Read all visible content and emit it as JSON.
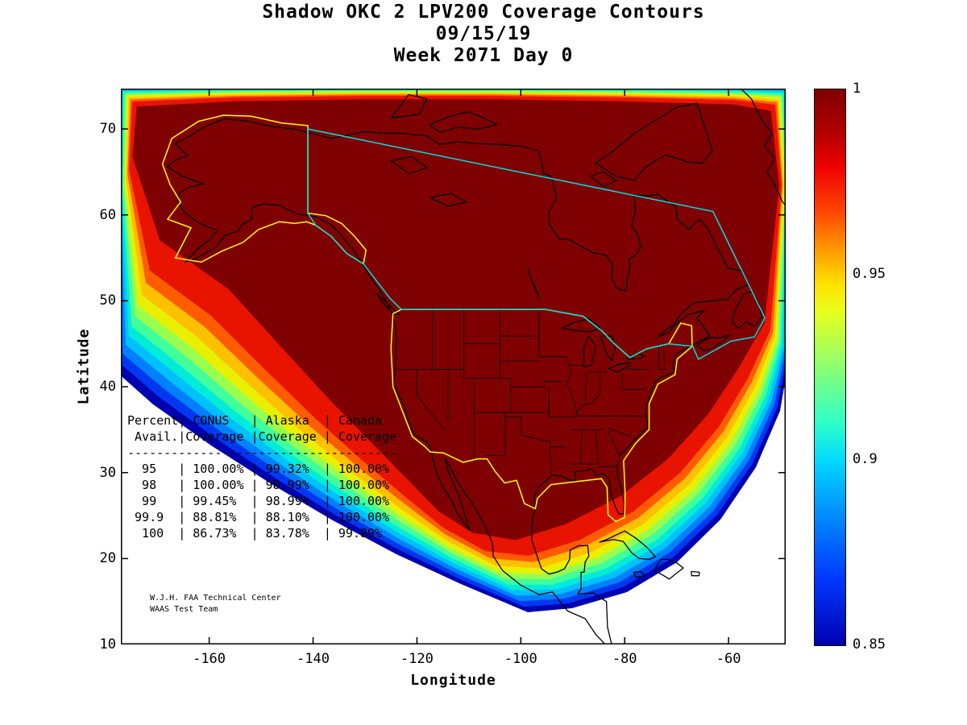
{
  "title": {
    "line1": "Shadow OKC 2 LPV200 Coverage Contours",
    "line2": "09/15/19",
    "line3": "Week 2071 Day 0"
  },
  "axes": {
    "xlabel": "Longitude",
    "ylabel": "Latitude"
  },
  "credit": {
    "line1": "W.J.H. FAA Technical Center",
    "line2": "WAAS Test Team"
  },
  "table": {
    "header_line1": "Percent| CONUS   | Alaska  | Canada",
    "header_line2": " Avail.|Coverage |Coverage | Coverage",
    "rows": [
      [
        "95",
        "100.00%",
        "99.32%",
        "100.00%"
      ],
      [
        "98",
        "100.00%",
        "98.99%",
        "100.00%"
      ],
      [
        "99",
        "99.45%",
        "98.99%",
        "100.00%"
      ],
      [
        "99.9",
        "88.81%",
        "88.10%",
        "100.00%"
      ],
      [
        "100",
        "86.73%",
        "83.78%",
        "99.89%"
      ]
    ]
  },
  "chart_data": {
    "type": "heatmap",
    "title": "Shadow OKC 2 LPV200 Coverage Contours",
    "subtitle": [
      "09/15/19",
      "Week 2071 Day 0"
    ],
    "xlabel": "Longitude",
    "ylabel": "Latitude",
    "xlim": [
      -177,
      -49
    ],
    "ylim": [
      10,
      74.7
    ],
    "x_ticks": [
      -160,
      -140,
      -120,
      -100,
      -80,
      -60
    ],
    "y_ticks": [
      70,
      60,
      50,
      40,
      30,
      20,
      10
    ],
    "grid": false,
    "colorbar": {
      "min": 0.85,
      "max": 1,
      "colormap": "jet",
      "ticks": [
        {
          "v": 1,
          "label": "1"
        },
        {
          "v": 0.95,
          "label": "0.95"
        },
        {
          "v": 0.9,
          "label": "0.9"
        },
        {
          "v": 0.85,
          "label": "0.85"
        }
      ]
    },
    "contour_levels": [
      0.85,
      0.9,
      0.95,
      1
    ],
    "band_colors": [
      "#0000b0",
      "#0038f0",
      "#0080ff",
      "#00c0ff",
      "#00ecd8",
      "#40ff9c",
      "#98ff50",
      "#e8f000",
      "#ffc000",
      "#ff5c00",
      "#e81400",
      "#7f0000"
    ],
    "band_t": [
      0,
      0.09,
      0.18,
      0.27,
      0.36,
      0.45,
      0.55,
      0.65,
      0.76,
      0.88,
      1.0,
      1.3
    ],
    "overlay_colors": {
      "conus_alaska_outline": "#ffff00",
      "canada_outline": "#00e0e0",
      "coastline": "#000000"
    },
    "availability": {
      "columns": [
        "Percent Avail.",
        "CONUS Coverage",
        "Alaska Coverage",
        "Canada Coverage"
      ],
      "rows": [
        [
          95,
          "100.00%",
          "99.32%",
          "100.00%"
        ],
        [
          98,
          "100.00%",
          "98.99%",
          "100.00%"
        ],
        [
          99,
          "99.45%",
          "98.99%",
          "100.00%"
        ],
        [
          99.9,
          "88.81%",
          "88.10%",
          "100.00%"
        ],
        [
          100,
          "86.73%",
          "83.78%",
          "99.89%"
        ]
      ]
    }
  }
}
